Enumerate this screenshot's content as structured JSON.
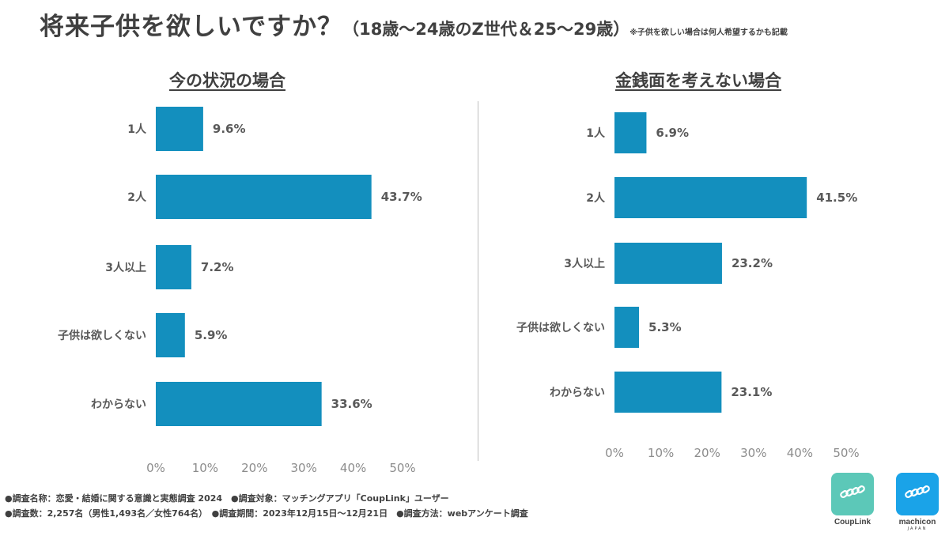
{
  "title": {
    "main": "将来子供を欲しいですか？",
    "sub": "（18歳～24歳のZ世代＆25～29歳）",
    "note": "※子供を欲しい場合は何人希望するかも記載"
  },
  "chart_data": [
    {
      "type": "bar",
      "orientation": "horizontal",
      "title": "今の状況の場合",
      "categories": [
        "1人",
        "2人",
        "3人以上",
        "子供は欲しくない",
        "わからない"
      ],
      "values": [
        9.6,
        43.7,
        7.2,
        5.9,
        33.6
      ],
      "value_labels": [
        "9.6%",
        "43.7%",
        "7.2%",
        "5.9%",
        "33.6%"
      ],
      "xlim": [
        0,
        50
      ],
      "ticks": [
        "0%",
        "10%",
        "20%",
        "30%",
        "40%",
        "50%"
      ],
      "grid": false,
      "bar_color": "#138fbe"
    },
    {
      "type": "bar",
      "orientation": "horizontal",
      "title": "金銭面を考えない場合",
      "categories": [
        "1人",
        "2人",
        "3人以上",
        "子供は欲しくない",
        "わからない"
      ],
      "values": [
        6.9,
        41.5,
        23.2,
        5.3,
        23.1
      ],
      "value_labels": [
        "6.9%",
        "41.5%",
        "23.2%",
        "5.3%",
        "23.1%"
      ],
      "xlim": [
        0,
        50
      ],
      "ticks": [
        "0%",
        "10%",
        "20%",
        "30%",
        "40%",
        "50%"
      ],
      "grid": false,
      "bar_color": "#138fbe"
    }
  ],
  "footer": {
    "line1": "●調査名称：恋愛・結婚に関する意識と実態調査 2024　●調査対象：マッチングアプリ「CoupLink」ユーザー",
    "line2": "●調査数：2,257名（男性1,493名／女性764名）　●調査期間：2023年12月15日～12月21日　●調査方法：webアンケート調査"
  },
  "logos": {
    "couplink": {
      "name": "CoupLink",
      "color": "#5cc8b8",
      "icon": "chain-link-icon"
    },
    "machicon": {
      "name": "machicon",
      "sub": "JAPAN",
      "color": "#1aa3e8",
      "icon": "chain-link-icon"
    }
  }
}
